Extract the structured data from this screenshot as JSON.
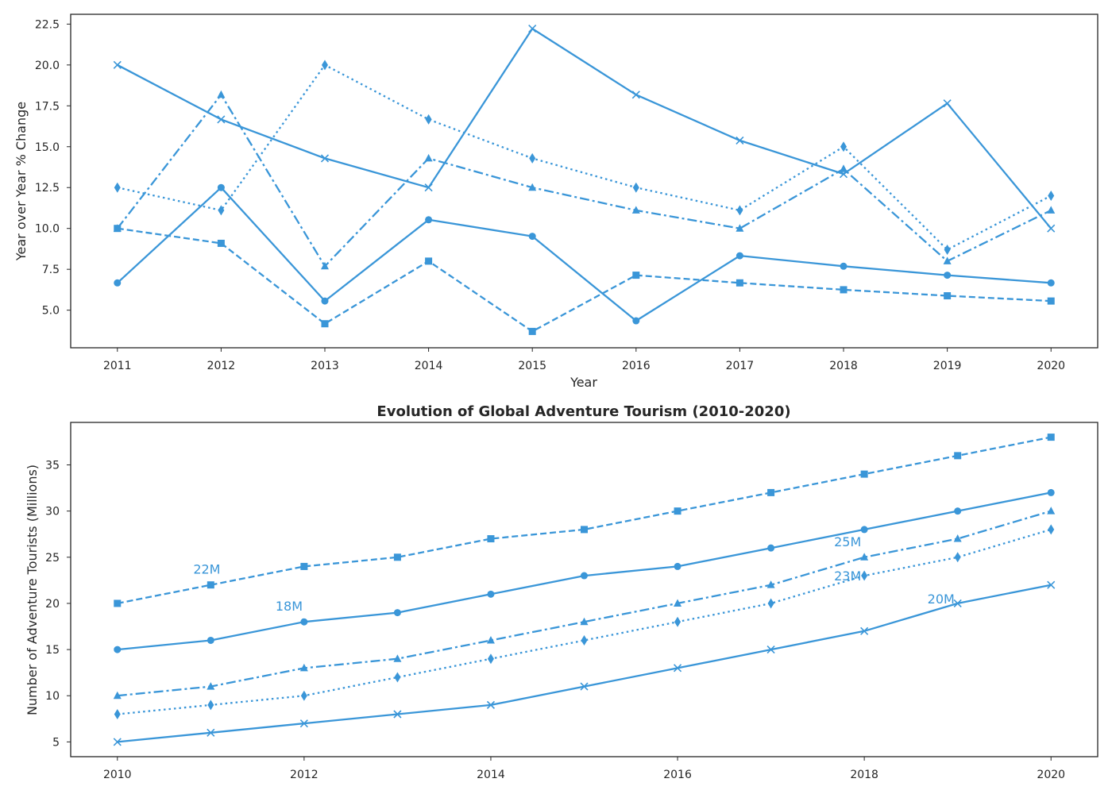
{
  "colors": {
    "series": "#3a96d8",
    "axes": "#262626",
    "background": "#ffffff"
  },
  "chart_data": [
    {
      "type": "line",
      "title": "",
      "xlabel": "Year",
      "ylabel": "Year over Year % Change",
      "xlim": [
        2010.55,
        2020.45
      ],
      "ylim": [
        2.7,
        23.1
      ],
      "x": [
        2011,
        2012,
        2013,
        2014,
        2015,
        2016,
        2017,
        2018,
        2019,
        2020
      ],
      "x_ticks": [
        2011,
        2012,
        2013,
        2014,
        2015,
        2016,
        2017,
        2018,
        2019,
        2020
      ],
      "x_tick_labels": [
        "2011",
        "2012",
        "2013",
        "2014",
        "2015",
        "2016",
        "2017",
        "2018",
        "2019",
        "2020"
      ],
      "y_ticks": [
        5,
        7.5,
        10,
        12.5,
        15,
        17.5,
        20,
        22.5
      ],
      "y_tick_labels": [
        "5.0",
        "7.5",
        "10.0",
        "12.5",
        "15.0",
        "17.5",
        "20.0",
        "22.5"
      ],
      "grid": false,
      "series": [
        {
          "marker": "circle",
          "dash": "solid",
          "values": [
            6.67,
            12.5,
            5.56,
            10.53,
            9.52,
            4.35,
            8.33,
            7.69,
            7.14,
            6.67
          ]
        },
        {
          "marker": "square",
          "dash": "dashed",
          "values": [
            10.0,
            9.09,
            4.17,
            8.0,
            3.7,
            7.14,
            6.67,
            6.25,
            5.88,
            5.56
          ]
        },
        {
          "marker": "triangle",
          "dash": "dashdot",
          "values": [
            10.0,
            18.18,
            7.69,
            14.29,
            12.5,
            11.11,
            10.0,
            13.64,
            8.0,
            11.11
          ]
        },
        {
          "marker": "diamond",
          "dash": "dotted",
          "values": [
            12.5,
            11.11,
            20.0,
            16.67,
            14.29,
            12.5,
            11.11,
            15.0,
            8.7,
            12.0
          ]
        },
        {
          "marker": "x",
          "dash": "solid",
          "values": [
            20.0,
            16.67,
            14.29,
            12.5,
            22.22,
            18.18,
            15.38,
            13.33,
            17.65,
            10.0
          ]
        }
      ]
    },
    {
      "type": "line",
      "title": "Evolution of Global Adventure Tourism (2010-2020)",
      "xlabel": "",
      "ylabel": "Number of Adventure Tourists (Millions)",
      "xlim": [
        2009.5,
        2020.5
      ],
      "ylim": [
        3.4,
        39.6
      ],
      "x": [
        2010,
        2011,
        2012,
        2013,
        2014,
        2015,
        2016,
        2017,
        2018,
        2019,
        2020
      ],
      "x_ticks": [
        2010,
        2012,
        2014,
        2016,
        2018,
        2020
      ],
      "x_tick_labels": [
        "2010",
        "2012",
        "2014",
        "2016",
        "2018",
        "2020"
      ],
      "y_ticks": [
        5,
        10,
        15,
        20,
        25,
        30,
        35
      ],
      "y_tick_labels": [
        "5",
        "10",
        "15",
        "20",
        "25",
        "30",
        "35"
      ],
      "grid": false,
      "series": [
        {
          "marker": "circle",
          "dash": "solid",
          "values": [
            15,
            16,
            18,
            19,
            21,
            23,
            24,
            26,
            28,
            30,
            32
          ]
        },
        {
          "marker": "square",
          "dash": "dashed",
          "values": [
            20,
            22,
            24,
            25,
            27,
            28,
            30,
            32,
            34,
            36,
            38
          ]
        },
        {
          "marker": "triangle",
          "dash": "dashdot",
          "values": [
            10,
            11,
            13,
            14,
            16,
            18,
            20,
            22,
            25,
            27,
            30
          ]
        },
        {
          "marker": "diamond",
          "dash": "dotted",
          "values": [
            8,
            9,
            10,
            12,
            14,
            16,
            18,
            20,
            23,
            25,
            28
          ]
        },
        {
          "marker": "x",
          "dash": "solid",
          "values": [
            5,
            6,
            7,
            8,
            9,
            11,
            13,
            15,
            17,
            20,
            22
          ]
        }
      ],
      "annotations": [
        {
          "text": "22M",
          "x": 2011,
          "y": 22
        },
        {
          "text": "18M",
          "x": 2012,
          "y": 18
        },
        {
          "text": "25M",
          "x": 2018,
          "y": 25
        },
        {
          "text": "23M",
          "x": 2018,
          "y": 23
        },
        {
          "text": "20M",
          "x": 2019,
          "y": 20
        }
      ]
    }
  ]
}
